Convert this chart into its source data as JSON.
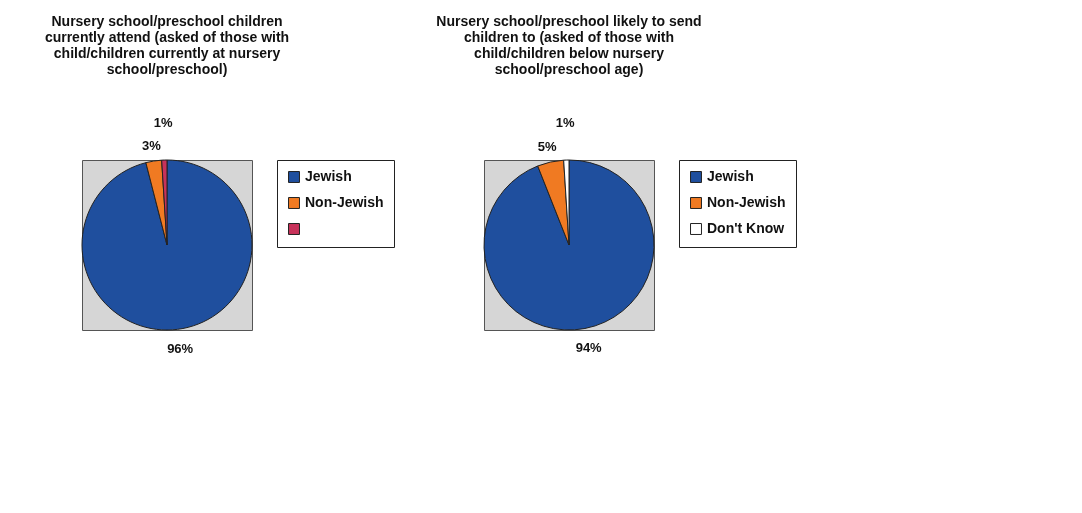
{
  "chart_data": [
    {
      "type": "pie",
      "title": "Nursery school/preschool children currently attend (asked of those with child/children currently at nursery school/preschool)",
      "categories": [
        "Jewish",
        "Non-Jewish",
        null
      ],
      "values": [
        96,
        3,
        1
      ],
      "value_labels": [
        "96%",
        "3%",
        "1%"
      ],
      "colors": [
        "#1f4f9e",
        "#f07a22",
        "#c8325a"
      ],
      "legend": "right"
    },
    {
      "type": "pie",
      "title": "Nursery school/preschool likely to send children to (asked of those with child/children below nursery school/preschool age)",
      "categories": [
        "Jewish",
        "Non-Jewish",
        "Don't Know"
      ],
      "values": [
        94,
        5,
        1
      ],
      "value_labels": [
        "94%",
        "5%",
        "1%"
      ],
      "colors": [
        "#1f4f9e",
        "#f07a22",
        "#ffffff"
      ],
      "legend": "right"
    }
  ]
}
